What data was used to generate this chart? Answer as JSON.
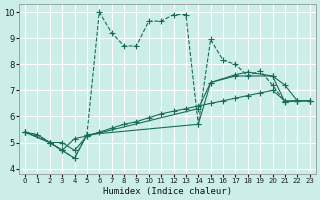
{
  "xlabel": "Humidex (Indice chaleur)",
  "bg_color": "#cceee8",
  "line_color": "#1a6b5a",
  "grid_color": "#ffffff",
  "xlim": [
    -0.5,
    23.5
  ],
  "ylim": [
    3.8,
    10.3
  ],
  "xticks": [
    0,
    1,
    2,
    3,
    4,
    5,
    6,
    7,
    8,
    9,
    10,
    11,
    12,
    13,
    14,
    15,
    16,
    17,
    18,
    19,
    20,
    21,
    22,
    23
  ],
  "yticks": [
    4,
    5,
    6,
    7,
    8,
    9,
    10
  ],
  "line1": [
    [
      0,
      5.4
    ],
    [
      1,
      5.3
    ],
    [
      2,
      5.0
    ],
    [
      3,
      4.7
    ],
    [
      4,
      4.4
    ],
    [
      5,
      5.3
    ],
    [
      6,
      10.0
    ],
    [
      7,
      9.2
    ],
    [
      8,
      8.7
    ],
    [
      9,
      8.7
    ],
    [
      10,
      9.65
    ],
    [
      11,
      9.65
    ],
    [
      12,
      9.9
    ],
    [
      13,
      9.9
    ],
    [
      14,
      5.7
    ],
    [
      15,
      8.95
    ],
    [
      16,
      8.15
    ],
    [
      17,
      8.0
    ],
    [
      18,
      7.55
    ],
    [
      19,
      7.75
    ],
    [
      20,
      7.2
    ],
    [
      21,
      6.55
    ],
    [
      22,
      6.6
    ],
    [
      23,
      6.6
    ]
  ],
  "line2": [
    [
      0,
      5.4
    ],
    [
      1,
      5.3
    ],
    [
      2,
      5.0
    ],
    [
      3,
      5.0
    ],
    [
      4,
      4.7
    ],
    [
      5,
      5.25
    ],
    [
      6,
      5.4
    ],
    [
      7,
      5.55
    ],
    [
      8,
      5.7
    ],
    [
      9,
      5.8
    ],
    [
      10,
      5.95
    ],
    [
      11,
      6.1
    ],
    [
      12,
      6.2
    ],
    [
      13,
      6.3
    ],
    [
      14,
      6.4
    ],
    [
      15,
      6.5
    ],
    [
      16,
      6.6
    ],
    [
      17,
      6.7
    ],
    [
      18,
      6.8
    ],
    [
      19,
      6.9
    ],
    [
      20,
      7.0
    ],
    [
      21,
      6.6
    ],
    [
      22,
      6.6
    ],
    [
      23,
      6.6
    ]
  ],
  "line3": [
    [
      0,
      5.4
    ],
    [
      2,
      5.0
    ],
    [
      3,
      4.7
    ],
    [
      4,
      5.15
    ],
    [
      5,
      5.25
    ],
    [
      14,
      6.3
    ],
    [
      15,
      7.3
    ],
    [
      17,
      7.6
    ],
    [
      18,
      7.7
    ],
    [
      20,
      7.55
    ],
    [
      21,
      6.55
    ],
    [
      22,
      6.6
    ],
    [
      23,
      6.6
    ]
  ],
  "line4": [
    [
      0,
      5.4
    ],
    [
      2,
      5.0
    ],
    [
      3,
      4.7
    ],
    [
      4,
      4.4
    ],
    [
      5,
      5.3
    ],
    [
      14,
      5.7
    ],
    [
      15,
      7.3
    ],
    [
      17,
      7.55
    ],
    [
      20,
      7.55
    ],
    [
      21,
      7.2
    ],
    [
      22,
      6.6
    ],
    [
      23,
      6.6
    ]
  ]
}
